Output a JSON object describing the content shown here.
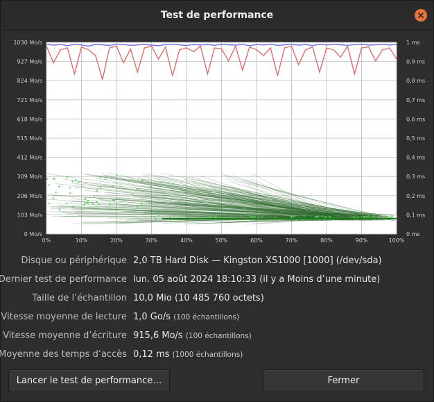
{
  "window": {
    "title": "Test de performance",
    "background_hint": "/dev/sda"
  },
  "chart_data": {
    "type": "line",
    "left_axis_ticks": [
      "1030 Mo/s",
      "927 Mo/s",
      "824 Mo/s",
      "721 Mo/s",
      "618 Mo/s",
      "515 Mo/s",
      "412 Mo/s",
      "309 Mo/s",
      "206 Mo/s",
      "103 Mo/s",
      "0 Mo/s"
    ],
    "right_axis_ticks": [
      "1 ms",
      "0,9 ms",
      "0,8 ms",
      "0,7 ms",
      "0,6 ms",
      "0,5 ms",
      "0,4 ms",
      "0,3 ms",
      "0,2 ms",
      "0,1 ms",
      "0 ms"
    ],
    "x_ticks": [
      "0%",
      "10%",
      "20%",
      "30%",
      "40%",
      "50%",
      "60%",
      "70%",
      "80%",
      "90%",
      "100%"
    ],
    "ylim": [
      0,
      1030
    ],
    "y2lim": [
      0,
      1
    ],
    "series": [
      {
        "color": "#6b6be8",
        "values": [
          1020,
          1015,
          1018,
          1012,
          1020,
          1016,
          1010,
          1019,
          1017,
          1013,
          1020,
          1018,
          1014,
          1016,
          1019,
          1015,
          1012,
          1018,
          1020,
          1017,
          1013,
          1019,
          1016,
          1018,
          1014,
          1020,
          1017,
          1015,
          1019,
          1012,
          1018,
          1016,
          1020,
          1014,
          1017,
          1019,
          1015,
          1018,
          1013,
          1020,
          1016,
          1019,
          1017,
          1014,
          1018,
          1020,
          1015,
          1017,
          1019,
          1016,
          1018
        ]
      },
      {
        "color": "#e06c6c",
        "values": [
          1010,
          920,
          990,
          1000,
          860,
          1005,
          990,
          960,
          830,
          1000,
          1010,
          920,
          995,
          870,
          1000,
          1010,
          940,
          1005,
          850,
          990,
          1000,
          980,
          1010,
          860,
          1000,
          995,
          930,
          1010,
          880,
          1005,
          990,
          960,
          1000,
          850,
          1000,
          1010,
          910,
          990,
          1005,
          870,
          1000,
          990,
          950,
          1010,
          860,
          1000,
          1005,
          930,
          990,
          1000,
          940
        ]
      }
    ],
    "accent_colors": {
      "read": "#6b6be8",
      "write": "#e06c6c",
      "access": "#4fd44f"
    }
  },
  "info": {
    "device": {
      "label": "Disque ou périphérique",
      "value": "2,0 TB Hard Disk — Kingston XS1000 [1000] (/dev/sda)"
    },
    "last_test": {
      "label": "Dernier test de performance",
      "value": "lun. 05 août 2024 18:10:33 (il y a Moins d’une minute)"
    },
    "sample_size": {
      "label": "Taille de l’échantillon",
      "value": "10,0 Mio (10 485 760 octets)"
    },
    "read_speed": {
      "label": "Vitesse moyenne de lecture",
      "value": "1,0 Go/s",
      "note": "(100 échantillons)"
    },
    "write_speed": {
      "label": "Vitesse moyenne d’écriture",
      "value": "915,6 Mo/s",
      "note": "(100 échantillons)"
    },
    "access_time": {
      "label": "Moyenne des temps d’accès",
      "value": "0,12 ms",
      "note": "(1000 échantillons)"
    }
  },
  "buttons": {
    "start": "Lancer le test de performance…",
    "close": "Fermer"
  }
}
